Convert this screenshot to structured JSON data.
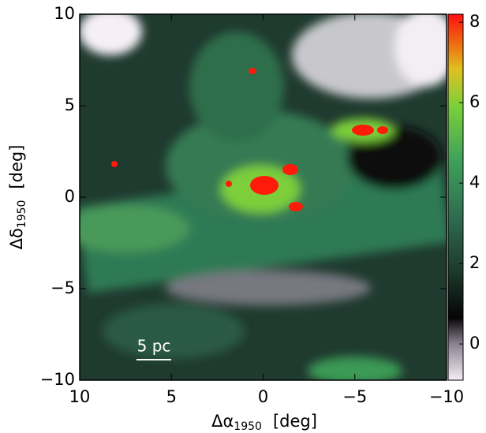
{
  "chart_data": {
    "type": "image",
    "x_label": {
      "symbol": "Δα",
      "subscript": "1950",
      "unit": "[deg]"
    },
    "y_label": {
      "symbol": "Δδ",
      "subscript": "1950",
      "unit": "[deg]"
    },
    "xlim": [
      10,
      -10
    ],
    "xticks": [
      10,
      5,
      0,
      {
        "value": -5,
        "label": "−5"
      },
      {
        "value": -10,
        "label": "−10"
      }
    ],
    "ylim": [
      -10,
      10
    ],
    "yticks": [
      {
        "value": -10,
        "label": "−10"
      },
      {
        "value": -5,
        "label": "−5"
      },
      0,
      5,
      10
    ],
    "clim": [
      -0.9,
      8.2
    ],
    "cticks": [
      0,
      2,
      4,
      6,
      8
    ],
    "annotation": "5 pc"
  }
}
